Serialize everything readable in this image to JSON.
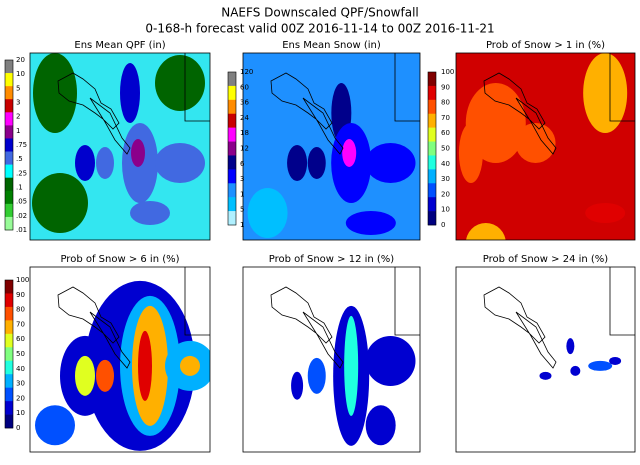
{
  "title": "NAEFS Downscaled QPF/Snowfall",
  "subtitle": "0-168-h forecast valid 00Z 2016-11-14 to 00Z 2016-11-21",
  "panels": [
    {
      "title": "Ens Mean QPF (in)",
      "colorbar": [
        "20",
        "10",
        "5",
        "3",
        "2",
        "1",
        ".75",
        ".5",
        ".25",
        ".1",
        ".05",
        ".02",
        ".01"
      ]
    },
    {
      "title": "Ens Mean Snow (in)",
      "colorbar": [
        "120",
        "60",
        "36",
        "24",
        "18",
        "12",
        "6",
        "3",
        "1",
        "5",
        "1"
      ]
    },
    {
      "title": "Prob of Snow > 1 in (%)",
      "colorbar": [
        "100",
        "90",
        "80",
        "70",
        "60",
        "50",
        "40",
        "30",
        "20",
        "10",
        "0"
      ]
    },
    {
      "title": "Prob of Snow > 6 in (%)",
      "colorbar": [
        "100",
        "90",
        "80",
        "70",
        "60",
        "50",
        "40",
        "30",
        "20",
        "10",
        "0"
      ]
    },
    {
      "title": "Prob of Snow > 12 in (%)"
    },
    {
      "title": "Prob of Snow > 24 in (%)"
    }
  ]
}
